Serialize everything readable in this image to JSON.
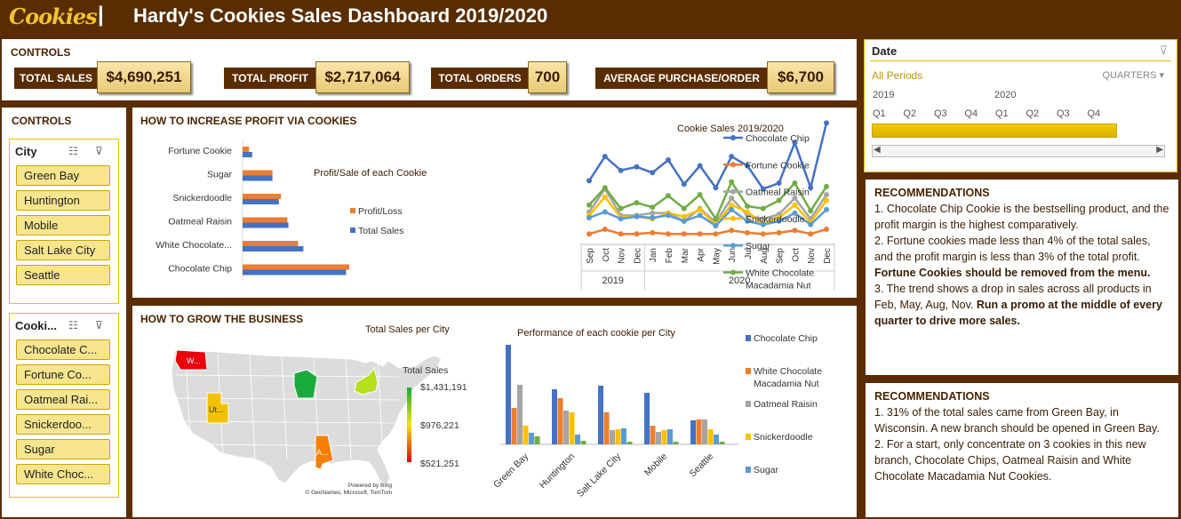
{
  "header": {
    "logo": "Cookies",
    "separator": "|",
    "title": "Hardy's Cookies Sales Dashboard 2019/2020"
  },
  "kpis": {
    "section_title": "CONTROLS",
    "items": [
      {
        "label": "TOTAL SALES",
        "value": "$4,690,251"
      },
      {
        "label": "TOTAL PROFIT",
        "value": "$2,717,064"
      },
      {
        "label": "TOTAL ORDERS",
        "value": "700"
      },
      {
        "label": "AVERAGE PURCHASE/ORDER",
        "value": "$6,700"
      }
    ]
  },
  "date_slicer": {
    "title": "Date",
    "selection": "All Periods",
    "granularity": "QUARTERS",
    "years": [
      "2019",
      "2020"
    ],
    "quarters": [
      "Q1",
      "Q2",
      "Q3",
      "Q4",
      "Q1",
      "Q2",
      "Q3",
      "Q4"
    ]
  },
  "side_controls": {
    "title": "CONTROLS",
    "city_slicer": {
      "title": "City",
      "items": [
        "Green Bay",
        "Huntington",
        "Mobile",
        "Salt Lake City",
        "Seattle"
      ]
    },
    "cookie_slicer": {
      "title": "Cooki...",
      "items": [
        "Chocolate C...",
        "Fortune Co...",
        "Oatmeal Rai...",
        "Snickerdoo...",
        "Sugar",
        "White Choc..."
      ]
    }
  },
  "profit_section": {
    "title": "HOW TO INCREASE PROFIT VIA COOKIES"
  },
  "growth_section": {
    "title": "HOW TO GROW THE BUSINESS"
  },
  "map": {
    "title": "Total Sales per City",
    "legend_title": "Total Sales",
    "legend_max": "$1,431,191",
    "legend_mid": "$976,221",
    "legend_min": "$521,251",
    "credit1": "Powered by Bing",
    "credit2": "© GeoNames, Microsoft, TomTom",
    "labels": [
      "W...",
      "Ut...",
      "A..."
    ],
    "colors": {
      "washington": "#e8000b",
      "utah": "#f2c200",
      "alabama": "#f77f00",
      "wisconsin": "#1aaa3c",
      "newyork": "#b4e01e",
      "base": "#dcdcdc"
    }
  },
  "recommendations": [
    {
      "title": "RECOMMENDATIONS",
      "lines": [
        {
          "text": "1. Chocolate Chip Cookie is the bestselling product, and the profit margin is the highest comparatively.",
          "bold": false
        },
        {
          "text": "2. Fortune cookies made less than 4% of the total sales, and the profit margin is less than 3% of the total profit.",
          "bold": false
        },
        {
          "text": "Fortune Cookies should be removed from the menu.",
          "bold": true
        },
        {
          "text": "3. The trend shows a drop in sales across all products in Feb, May, Aug, Nov.",
          "bold": false
        },
        {
          "text": "Run a promo at the middle of every quarter to drive more sales.",
          "bold": true
        }
      ]
    },
    {
      "title": "RECOMMENDATIONS",
      "lines": [
        {
          "text": "1. 31% of the total sales came from Green Bay, in Wisconsin. A new branch should be opened in Green Bay.",
          "bold": false
        },
        {
          "text": "2. For a start, only concentrate on 3 cookies in this new branch, Chocolate Chips, Oatmeal Raisin and White Chocolate Macadamia Nut Cookies.",
          "bold": false
        }
      ]
    }
  ],
  "chart_data": [
    {
      "id": "profit_sales",
      "type": "bar",
      "orientation": "horizontal",
      "title": "Profit/Sale of each Cookie",
      "categories": [
        "Fortune Cookie",
        "Sugar",
        "Snickerdoodle",
        "Oatmeal Raisin",
        "White Chocolate...",
        "Chocolate Chip"
      ],
      "series": [
        {
          "name": "Profit/Loss",
          "color": "#ed7d31",
          "values": [
            0.06,
            0.28,
            0.36,
            0.42,
            0.52,
            1.0
          ]
        },
        {
          "name": "Total Sales",
          "color": "#4472c4",
          "values": [
            0.09,
            0.28,
            0.34,
            0.43,
            0.57,
            0.97
          ]
        }
      ]
    },
    {
      "id": "cookie_sales_trend",
      "type": "line",
      "title": "Cookie Sales 2019/2020",
      "months": [
        "Sep",
        "Oct",
        "Nov",
        "Dec",
        "Jan",
        "Feb",
        "Mar",
        "Apr",
        "May",
        "Jun",
        "Jul",
        "Aug",
        "Sep",
        "Oct",
        "Nov",
        "Dec"
      ],
      "years": [
        {
          "label": "2019",
          "span": 4
        },
        {
          "label": "2020",
          "span": 12
        }
      ],
      "series": [
        {
          "name": "Chocolate Chip",
          "color": "#4472c4",
          "values": [
            52,
            73,
            61,
            64,
            59,
            70,
            49,
            65,
            46,
            73,
            65,
            45,
            50,
            85,
            46,
            102
          ]
        },
        {
          "name": "Fortune Cookie",
          "color": "#ed7d31",
          "values": [
            6,
            10,
            6,
            6,
            7,
            6,
            6,
            6,
            6,
            9,
            7,
            6,
            7,
            9,
            6,
            10
          ]
        },
        {
          "name": "Oatmeal Raisin",
          "color": "#a5a5a5",
          "values": [
            25,
            45,
            22,
            22,
            24,
            24,
            17,
            28,
            16,
            37,
            22,
            19,
            23,
            37,
            19,
            40
          ]
        },
        {
          "name": "Snickerdoodle",
          "color": "#ffc000",
          "values": [
            22,
            38,
            20,
            21,
            19,
            24,
            21,
            27,
            14,
            31,
            25,
            15,
            20,
            31,
            16,
            35
          ]
        },
        {
          "name": "Sugar",
          "color": "#5b9bd5",
          "values": [
            20,
            25,
            19,
            21,
            20,
            22,
            17,
            22,
            13,
            27,
            17,
            14,
            17,
            24,
            14,
            27
          ]
        },
        {
          "name": "White Chocolate Macadamia Nut",
          "color": "#70ad47",
          "values": [
            31,
            46,
            28,
            33,
            29,
            39,
            28,
            40,
            19,
            51,
            30,
            28,
            35,
            50,
            26,
            47
          ]
        }
      ]
    },
    {
      "id": "performance_per_city",
      "type": "bar",
      "title": "Performance of each cookie per City",
      "categories": [
        "Green Bay",
        "Huntington",
        "Salt Lake City",
        "Mobile",
        "Seattle"
      ],
      "series": [
        {
          "name": "Chocolate Chip",
          "color": "#4472c4",
          "values": [
            112,
            62,
            66,
            58,
            27
          ]
        },
        {
          "name": "White Chocolate Macadamia Nut",
          "color": "#ed7d31",
          "values": [
            41,
            52,
            36,
            21,
            28
          ]
        },
        {
          "name": "Oatmeal Raisin",
          "color": "#a5a5a5",
          "values": [
            67,
            38,
            16,
            14,
            28
          ]
        },
        {
          "name": "Snickerdoodle",
          "color": "#ffc000",
          "values": [
            21,
            36,
            17,
            16,
            17
          ]
        },
        {
          "name": "Sugar",
          "color": "#5b9bd5",
          "values": [
            13,
            11,
            18,
            17,
            11
          ]
        },
        {
          "name": "Fortune Cookie",
          "color": "#70ad47",
          "values": [
            9,
            4,
            3,
            3,
            3
          ]
        }
      ],
      "legend": [
        "Chocolate Chip",
        "White Chocolate Macadamia Nut",
        "Oatmeal Raisin",
        "Snickerdoodle",
        "Sugar"
      ]
    }
  ]
}
